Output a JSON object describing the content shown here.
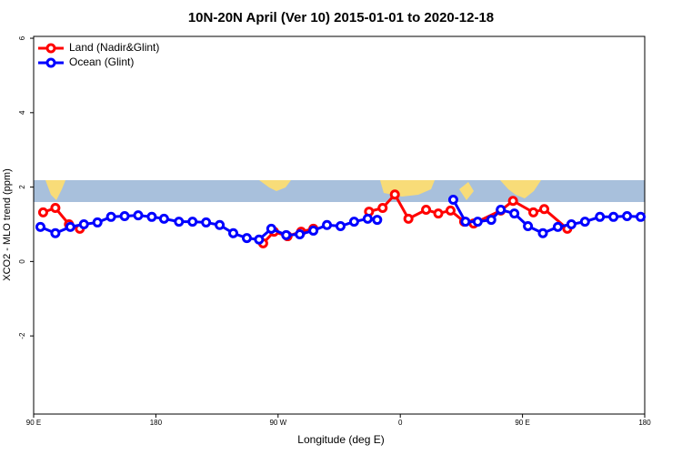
{
  "chart_data": {
    "type": "line",
    "title": "10N-20N April (Ver 10)   2015-01-01 to 2020-12-18",
    "x_label": "Longitude (deg E)",
    "y_label": "XCO2 - MLO trend (ppm)",
    "xlim": [
      90,
      540
    ],
    "ylim": [
      -4.1,
      6.05
    ],
    "xticks": [
      {
        "value": 90,
        "label": "90 E"
      },
      180,
      {
        "value": 270,
        "label": "90 W"
      },
      {
        "value": 360,
        "label": "0"
      },
      {
        "value": 450,
        "label": "90 E"
      },
      {
        "value": 540,
        "label": "180"
      }
    ],
    "yticks": [
      -2,
      0,
      2,
      4,
      6
    ],
    "legend": "top-left",
    "series": [
      {
        "name": "Land (Nadir&Glint)",
        "color": "#ff0000",
        "x": [
          97,
          106,
          116,
          124,
          null,
          259,
          267,
          277,
          287,
          296,
          null,
          337,
          347,
          356,
          366,
          379,
          388,
          397,
          407,
          414,
          434,
          443,
          458,
          466,
          483
        ],
        "values": [
          1.32,
          1.44,
          1.0,
          0.88,
          null,
          0.49,
          0.8,
          0.68,
          0.8,
          0.88,
          null,
          1.34,
          1.44,
          1.8,
          1.15,
          1.39,
          1.29,
          1.37,
          1.07,
          1.02,
          1.37,
          1.63,
          1.32,
          1.41,
          0.88
        ]
      },
      {
        "name": "Ocean (Glint)",
        "color": "#0000ff",
        "x": [
          95,
          106,
          117,
          127,
          137,
          147,
          157,
          167,
          177,
          186,
          197,
          207,
          217,
          227,
          237,
          247,
          256,
          265,
          276,
          286,
          296,
          306,
          316,
          326,
          336,
          343,
          null,
          399,
          408,
          417,
          427,
          434,
          444,
          454,
          465,
          476,
          486,
          496,
          507,
          517,
          527,
          537
        ],
        "values": [
          0.93,
          0.76,
          0.93,
          1.0,
          1.05,
          1.2,
          1.22,
          1.24,
          1.2,
          1.15,
          1.07,
          1.07,
          1.05,
          0.98,
          0.76,
          0.63,
          0.59,
          0.88,
          0.71,
          0.73,
          0.83,
          0.98,
          0.95,
          1.07,
          1.15,
          1.12,
          null,
          1.66,
          1.07,
          1.07,
          1.12,
          1.39,
          1.29,
          0.95,
          0.76,
          0.93,
          1.0,
          1.07,
          1.2,
          1.2,
          1.22,
          1.2
        ]
      }
    ]
  }
}
